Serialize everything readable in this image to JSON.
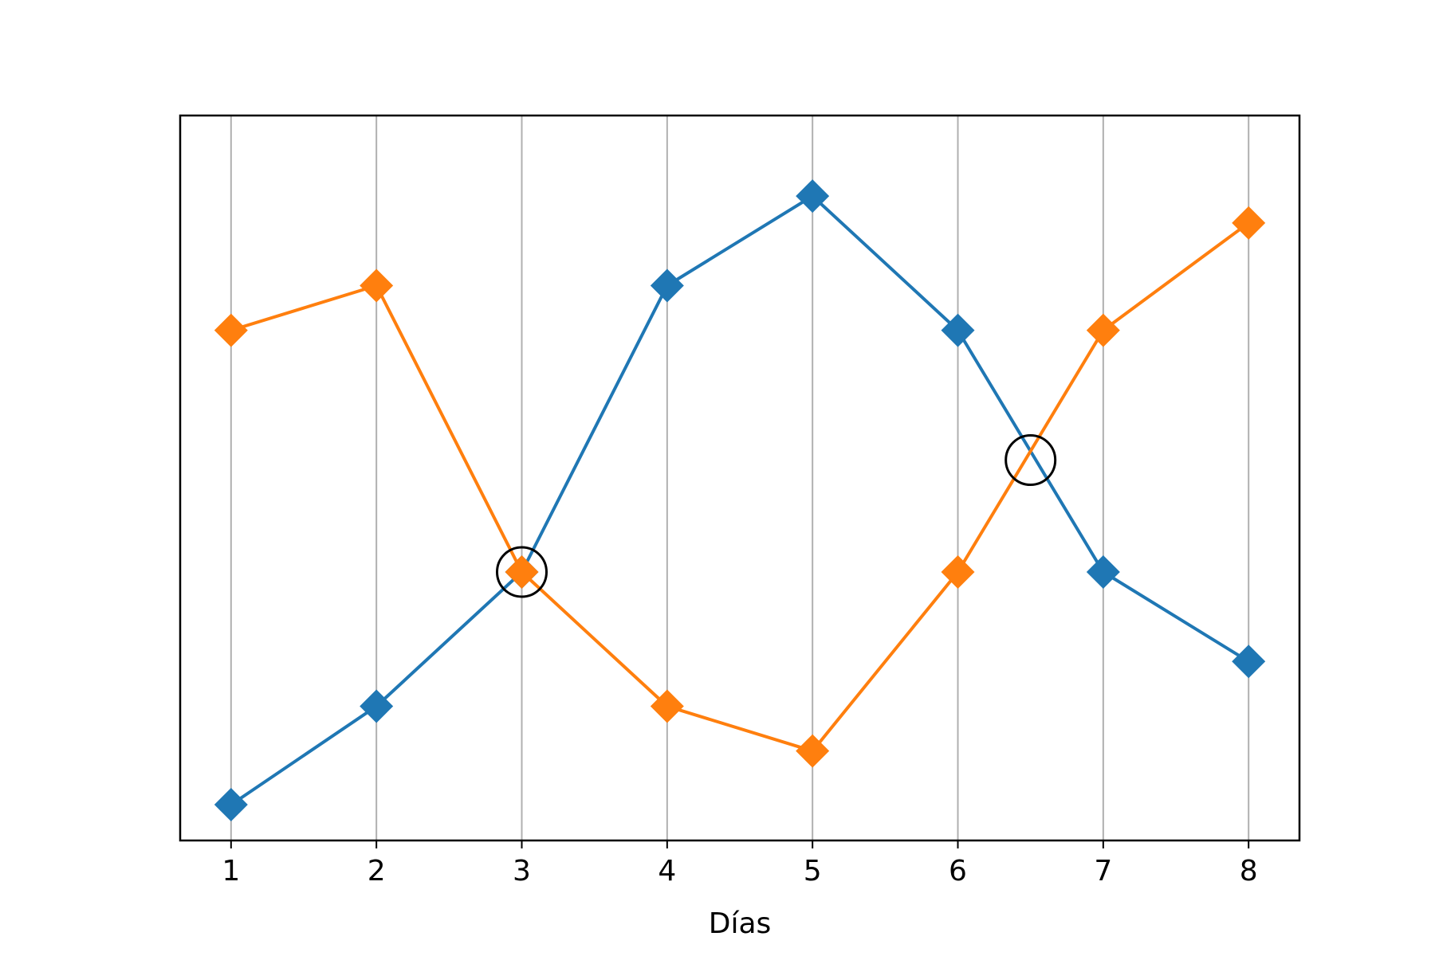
{
  "chart_data": {
    "type": "line",
    "xlabel": "Días",
    "ylabel": "",
    "x": [
      1,
      2,
      3,
      4,
      5,
      6,
      7,
      8
    ],
    "xticks": [
      "1",
      "2",
      "3",
      "4",
      "5",
      "6",
      "7",
      "8"
    ],
    "yticks_visible": false,
    "grid": "vertical",
    "ylim": [
      0.3,
      8.4
    ],
    "series": [
      {
        "values": [
          0.7,
          1.8,
          3.3,
          6.5,
          7.5,
          6.0,
          3.3,
          2.3
        ],
        "color": "#1f77b4",
        "marker": "diamond"
      },
      {
        "values": [
          6.0,
          6.5,
          3.3,
          1.8,
          1.3,
          3.3,
          6.0,
          7.2
        ],
        "color": "#ff7f0e",
        "marker": "diamond"
      }
    ],
    "annotations": [
      {
        "type": "circle",
        "x": 3.0,
        "y": 3.3
      },
      {
        "type": "circle",
        "x": 6.5,
        "y": 4.55
      }
    ]
  }
}
